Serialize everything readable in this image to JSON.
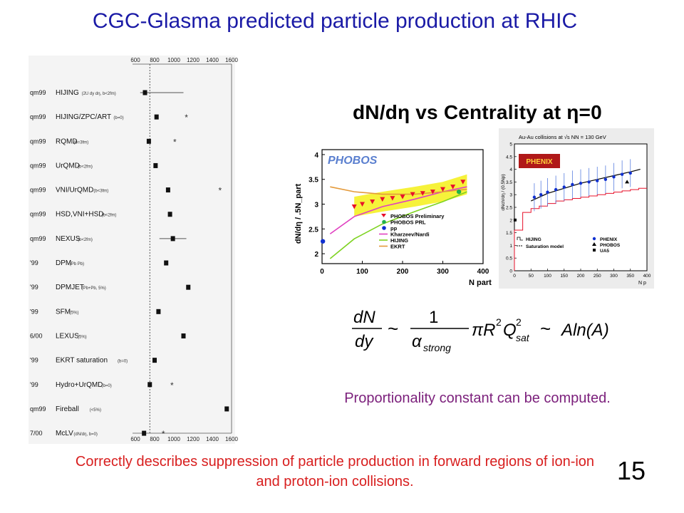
{
  "slide": {
    "title": "CGC-Glasma predicted particle production at RHIC",
    "number": "15",
    "proportionality_note": "Proportionality constant can be computed.",
    "forward_note": "Correctly describes suppression of particle production in forward regions of ion-ion and proton-ion collisions."
  },
  "formula": {
    "numerator": "dN",
    "denominator": "dy",
    "tilde": "~",
    "frac_one": "1",
    "alpha": "α",
    "alpha_sub": "strong",
    "middle": "πR",
    "r_exp": "2",
    "q": "Q",
    "q_exp": "2",
    "q_sub": "sat",
    "tail": "Aln(A)"
  },
  "panel_heading": "dN/dη  vs Centrality at η=0",
  "chart_data": [
    {
      "type": "scatter",
      "title": "",
      "xlim": [
        600,
        1600
      ],
      "xticks": [
        "600",
        "800",
        "1000",
        "1200",
        "1400",
        "1600"
      ],
      "reference_x": 750,
      "rows": [
        {
          "tag": "qm99",
          "model": "HIJING",
          "note": "(2U dy dη, b<2fm)",
          "x": 700,
          "star_x": null,
          "err": [
            650,
            1100
          ]
        },
        {
          "tag": "qm99",
          "model": "HIJING/ZPC/ART",
          "note": "(b=0)",
          "x": 820,
          "star_x": 1130,
          "err": null
        },
        {
          "tag": "qm99",
          "model": "RQMD",
          "note": "(b=3fm)",
          "x": 740,
          "star_x": 1010,
          "err": null
        },
        {
          "tag": "qm99",
          "model": "UrQMD",
          "note": "(b<2fm)",
          "x": 810,
          "star_x": null,
          "err": null
        },
        {
          "tag": "qm99",
          "model": "VNI/UrQMD",
          "note": "(b<3fm)",
          "x": 940,
          "star_x": 1480,
          "err": null
        },
        {
          "tag": "qm99",
          "model": "HSD,VNI+HSD",
          "note": "(b<2fm)",
          "x": 960,
          "star_x": null,
          "err": null
        },
        {
          "tag": "qm99",
          "model": "NEXUS",
          "note": "(b<2fm)",
          "x": 990,
          "star_x": null,
          "err": [
            850,
            1130
          ]
        },
        {
          "tag": "'99",
          "model": "DPM",
          "note": "(Pb Pb)",
          "x": 920,
          "star_x": null,
          "err": null
        },
        {
          "tag": "'99",
          "model": "DPMJET",
          "note": "(Pb+Pb, 5%)",
          "x": 1150,
          "star_x": null,
          "err": null
        },
        {
          "tag": "'99",
          "model": "SFM",
          "note": "(5%)",
          "x": 840,
          "star_x": null,
          "err": null
        },
        {
          "tag": "6/00",
          "model": "LEXUS",
          "note": "(5%)",
          "x": 1100,
          "star_x": null,
          "err": null
        },
        {
          "tag": "'99",
          "model": "EKRT saturation",
          "note": "(b=0)",
          "x": 800,
          "star_x": null,
          "err": null
        },
        {
          "tag": "'99",
          "model": "Hydro+UrQMD",
          "note": "(b=0)",
          "x": 750,
          "star_x": 980,
          "err": null
        },
        {
          "tag": "qm99",
          "model": "Fireball",
          "note": "(<5%)",
          "x": 1550,
          "star_x": null,
          "err": null
        },
        {
          "tag": "7/00",
          "model": "McLV",
          "note": "(dN/dη, b=0)",
          "x": 690,
          "star_x": 890,
          "err": null
        }
      ]
    },
    {
      "type": "scatter",
      "title": "",
      "xlabel": "N_part",
      "ylabel": "dN/dη / .5N_part",
      "xlim": [
        0,
        400
      ],
      "ylim": [
        1.8,
        4.1
      ],
      "xticks": [
        0,
        100,
        200,
        300,
        400
      ],
      "yticks": [
        2,
        2.5,
        3,
        3.5,
        4
      ],
      "logo": "PHOBOS",
      "legend": [
        "PHOBOS Preliminary",
        "PHOBOS PRL",
        "pp",
        "Kharzeev/Nardi",
        "HIJING",
        "EKRT"
      ],
      "series": [
        {
          "name": "PHOBOS Preliminary",
          "color": "#e8102a",
          "marker": "triangle-down",
          "x": [
            80,
            100,
            125,
            150,
            175,
            200,
            225,
            250,
            275,
            300,
            325,
            350
          ],
          "y": [
            2.95,
            3.0,
            3.05,
            3.1,
            3.12,
            3.15,
            3.2,
            3.22,
            3.25,
            3.3,
            3.35,
            3.45
          ]
        },
        {
          "name": "PHOBOS PRL",
          "color": "#22b14c",
          "marker": "circle",
          "x": [
            340
          ],
          "y": [
            3.25
          ]
        },
        {
          "name": "pp",
          "color": "#1030d0",
          "marker": "circle",
          "x": [
            2
          ],
          "y": [
            2.25
          ]
        },
        {
          "name": "Kharzeev/Nardi",
          "color": "#e040c0",
          "line": true,
          "x": [
            20,
            80,
            150,
            230,
            300,
            360
          ],
          "y": [
            2.4,
            2.75,
            2.95,
            3.1,
            3.25,
            3.35
          ]
        },
        {
          "name": "HIJING",
          "color": "#7ed321",
          "line": true,
          "x": [
            20,
            80,
            150,
            230,
            300,
            360
          ],
          "y": [
            1.9,
            2.3,
            2.6,
            2.85,
            3.05,
            3.25
          ]
        },
        {
          "name": "EKRT",
          "color": "#e49a3a",
          "line": true,
          "x": [
            20,
            80,
            150,
            230,
            300,
            360
          ],
          "y": [
            3.35,
            3.25,
            3.2,
            3.2,
            3.25,
            3.3
          ]
        }
      ]
    },
    {
      "type": "scatter",
      "title": "",
      "header": "Au-Au collisions at √s_NN = 130 GeV",
      "logo": "PHENIX",
      "xlabel": "N_p",
      "ylabel": "dN_ch/dη / (0.5N_p)",
      "xlim": [
        0,
        400
      ],
      "ylim": [
        0,
        5
      ],
      "xticks": [
        0,
        50,
        100,
        150,
        200,
        250,
        300,
        350,
        400
      ],
      "yticks": [
        0,
        0.5,
        1,
        1.5,
        2,
        2.5,
        3,
        3.5,
        4,
        4.5,
        5
      ],
      "legend": [
        "HIJING",
        "Saturation model",
        "PHENIX",
        "PHOBOS",
        "UA5"
      ],
      "series": [
        {
          "name": "PHENIX",
          "color": "#1030d0",
          "marker": "circle",
          "x": [
            60,
            80,
            100,
            125,
            150,
            175,
            200,
            225,
            250,
            275,
            300,
            325,
            350
          ],
          "y": [
            2.9,
            3.0,
            3.1,
            3.2,
            3.3,
            3.4,
            3.45,
            3.5,
            3.55,
            3.6,
            3.7,
            3.8,
            3.85
          ]
        },
        {
          "name": "PHOBOS",
          "color": "#000000",
          "marker": "triangle",
          "x": [
            340
          ],
          "y": [
            3.5
          ]
        },
        {
          "name": "UA5",
          "color": "#000000",
          "marker": "square",
          "x": [
            2
          ],
          "y": [
            2.0
          ]
        },
        {
          "name": "HIJING",
          "color": "#e8102a",
          "step": true,
          "x": [
            0,
            25,
            50,
            75,
            100,
            125,
            150,
            175,
            200,
            225,
            250,
            275,
            300,
            325,
            350,
            375
          ],
          "y": [
            1.6,
            2.3,
            2.45,
            2.55,
            2.65,
            2.75,
            2.8,
            2.85,
            2.9,
            2.95,
            3.0,
            3.05,
            3.1,
            3.15,
            3.2,
            3.25
          ]
        },
        {
          "name": "Saturation model",
          "color": "#000000",
          "line": true,
          "x": [
            50,
            100,
            150,
            200,
            250,
            300,
            350,
            380
          ],
          "y": [
            2.75,
            3.05,
            3.25,
            3.45,
            3.6,
            3.75,
            3.9,
            4.0
          ]
        }
      ]
    }
  ]
}
